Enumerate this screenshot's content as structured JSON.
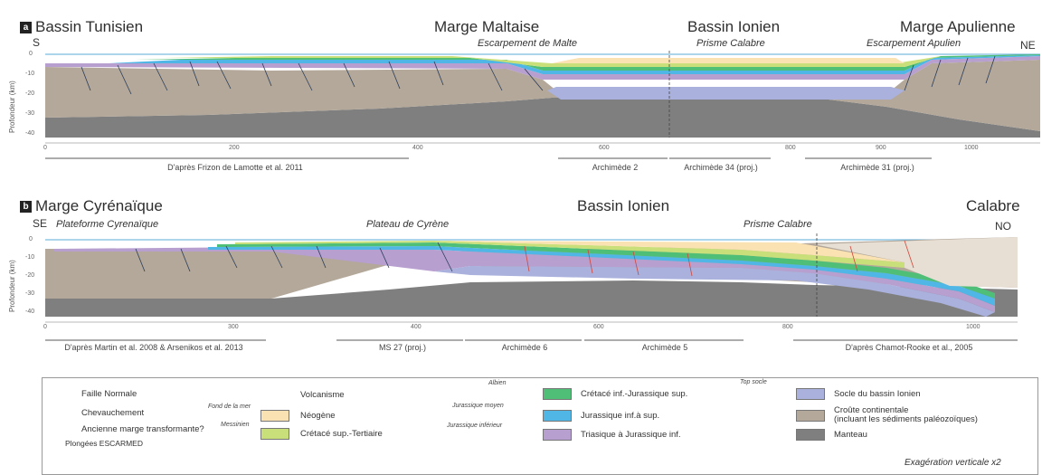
{
  "colors": {
    "mantle": "#7f7f7f",
    "crust": "#b3a89a",
    "ionian_basement": "#a9b1dc",
    "triassic": "#b79fd0",
    "jurassic_inf_sup": "#4fb6e6",
    "cretace_inf_jurassique_sup": "#4fbf78",
    "cretace_sup_tertiaire": "#c9e07a",
    "neogene": "#fbe2b3",
    "calabrian_prism": "#e7ded4",
    "fault_normal": "#2a3b57",
    "thrust": "#d2473b",
    "sea": "#9fd3ea"
  },
  "panel_a": {
    "letter": "a",
    "title_left": "Bassin Tunisien",
    "title_mid1": "Marge Maltaise",
    "title_mid2": "Bassin Ionien",
    "title_right": "Marge Apulienne",
    "dir_left": "S",
    "dir_right": "NE",
    "feature1": "Escarpement de Malte",
    "feature2": "Prisme Calabre",
    "feature3": "Escarpement Apulien",
    "ylabel": "Profondeur (km)",
    "yticks": [
      "0",
      "-10",
      "-20",
      "-30",
      "-40"
    ],
    "xticks": [
      "0",
      "200",
      "400",
      "600",
      "800",
      "900",
      "1000"
    ],
    "sources": [
      "D'après Frizon de Lamotte et al. 2011",
      "Archimède 2",
      "Archimède 34 (proj.)",
      "Archimède 31 (proj.)"
    ]
  },
  "panel_b": {
    "letter": "b",
    "title_left": "Marge Cyrénaïque",
    "title_mid": "Bassin Ionien",
    "title_right": "Calabre",
    "dir_left": "SE",
    "dir_right": "NO",
    "feature1": "Plateforme Cyrenaïque",
    "feature2": "Plateau de Cyrène",
    "feature3": "Prisme Calabre",
    "ylabel": "Profondeur (km)",
    "yticks": [
      "0",
      "-10",
      "-20",
      "-30",
      "-40"
    ],
    "xticks": [
      "0",
      "300",
      "400",
      "600",
      "800",
      "1000"
    ],
    "sources": [
      "D'après Martin et al. 2008 & Arsenikos et al. 2013",
      "MS 27 (proj.)",
      "Archimède 6",
      "Archimède 5",
      "D'après Chamot-Rooke et al., 2005"
    ]
  },
  "legend": {
    "col1": [
      "Faille Normale",
      "Chevauchement",
      "Ancienne marge transformante?",
      "Plongées ESCARMED"
    ],
    "col2_small": [
      "Fond de la mer",
      "Messinien"
    ],
    "col2": [
      "Volcanisme",
      "Néogène",
      "Crétacé sup.-Tertiaire"
    ],
    "col3_small": [
      "Albien",
      "Jurassique moyen",
      "Jurassique inférieur"
    ],
    "col3": [
      "Crétacé inf.-Jurassique sup.",
      "Jurassique inf.à sup.",
      "Triasique à Jurassique inf."
    ],
    "col4_small": "Top socle",
    "col4": [
      "Socle du bassin Ionien",
      "Croûte continentale\n(incluant les sédiments paléozoïques)",
      "Manteau"
    ],
    "exaggeration": "Exagération verticale x2"
  }
}
